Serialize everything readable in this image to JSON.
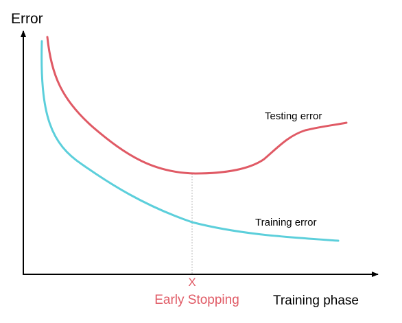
{
  "axes": {
    "y_label": "Error",
    "x_label": "Training phase"
  },
  "curves": {
    "testing": {
      "label": "Testing error",
      "color": "#e05a65"
    },
    "training": {
      "label": "Training error",
      "color": "#5ccfdb"
    }
  },
  "marker": {
    "symbol": "X",
    "label": "Early Stopping",
    "color": "#e05a65"
  },
  "colors": {
    "axis": "#000000",
    "guide": "#b8b8b8",
    "text": "#000000"
  }
}
